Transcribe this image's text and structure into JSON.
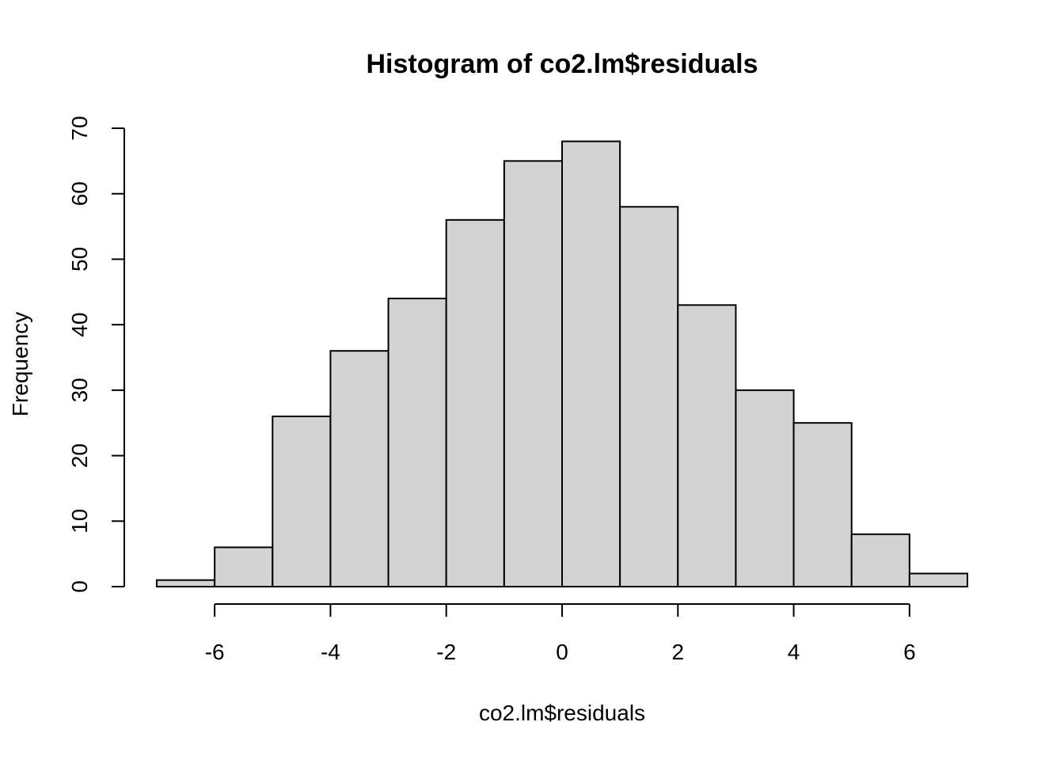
{
  "chart_data": {
    "type": "bar",
    "title": "Histogram of co2.lm$residuals",
    "xlabel": "co2.lm$residuals",
    "ylabel": "Frequency",
    "bins": [
      {
        "from": -7,
        "to": -6,
        "count": 1
      },
      {
        "from": -6,
        "to": -5,
        "count": 6
      },
      {
        "from": -5,
        "to": -4,
        "count": 26
      },
      {
        "from": -4,
        "to": -3,
        "count": 36
      },
      {
        "from": -3,
        "to": -2,
        "count": 44
      },
      {
        "from": -2,
        "to": -1,
        "count": 56
      },
      {
        "from": -1,
        "to": 0,
        "count": 65
      },
      {
        "from": 0,
        "to": 1,
        "count": 68
      },
      {
        "from": 1,
        "to": 2,
        "count": 58
      },
      {
        "from": 2,
        "to": 3,
        "count": 43
      },
      {
        "from": 3,
        "to": 4,
        "count": 30
      },
      {
        "from": 4,
        "to": 5,
        "count": 25
      },
      {
        "from": 5,
        "to": 6,
        "count": 8
      },
      {
        "from": 6,
        "to": 7,
        "count": 2
      }
    ],
    "xlim": [
      -7,
      7
    ],
    "ylim": [
      0,
      70
    ],
    "x_ticks": [
      -6,
      -4,
      -2,
      0,
      2,
      4,
      6
    ],
    "x_tick_labels": [
      "-6",
      "-4",
      "-2",
      "0",
      "2",
      "4",
      "6"
    ],
    "y_ticks": [
      0,
      10,
      20,
      30,
      40,
      50,
      60,
      70
    ],
    "y_tick_labels": [
      "0",
      "10",
      "20",
      "30",
      "40",
      "50",
      "60",
      "70"
    ],
    "bar_color": "#d3d3d3",
    "grid": false,
    "legend": "none"
  }
}
